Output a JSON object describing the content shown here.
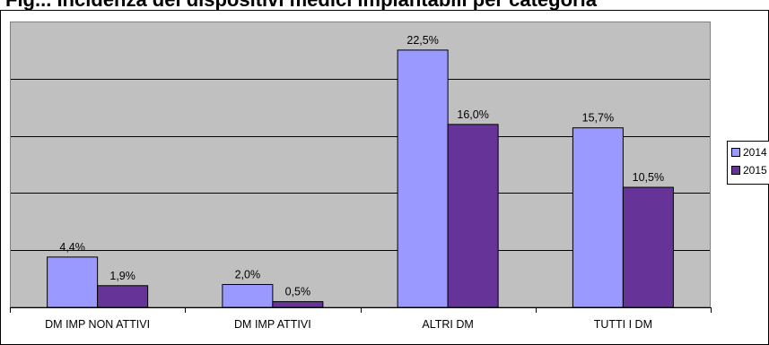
{
  "caption": {
    "text": "Fig... Incidenza dei dispositivi medici impiantabili per categoria"
  },
  "chart_data": {
    "type": "bar",
    "title": "",
    "xlabel": "",
    "ylabel": "",
    "ylim": [
      0,
      25
    ],
    "grid": true,
    "legend": "right",
    "categories": [
      "DM IMP NON ATTIVI",
      "DM IMP ATTIVI",
      "ALTRI DM",
      "TUTTI I DM"
    ],
    "series": [
      {
        "name": "2014",
        "color": "#9999FF",
        "values": [
          4.4,
          2.0,
          22.5,
          15.7
        ],
        "labels": [
          "4,4%",
          "2,0%",
          "22,5%",
          "15,7%"
        ]
      },
      {
        "name": "2015",
        "color": "#663399",
        "values": [
          1.9,
          0.5,
          16.0,
          10.5
        ],
        "labels": [
          "1,9%",
          "0,5%",
          "16,0%",
          "10,5%"
        ]
      }
    ],
    "plot_background": "#C0C0C0"
  }
}
